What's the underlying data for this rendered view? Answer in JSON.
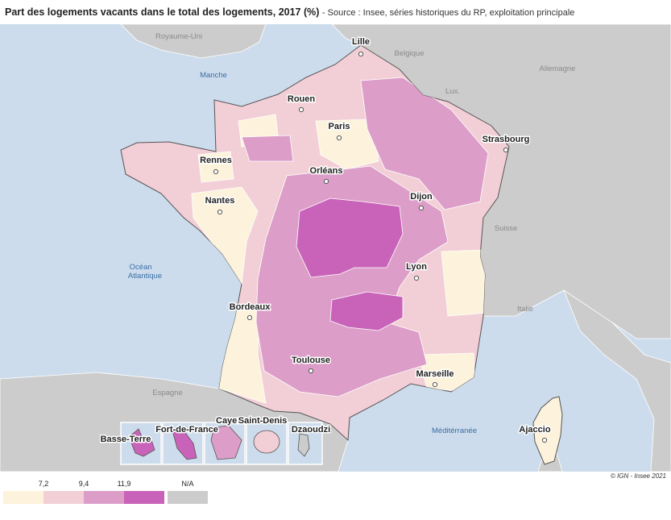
{
  "header": {
    "title": "Part des logements vacants dans le total des logements, 2017 (%)",
    "source": "- Source : Insee, séries historiques du RP, exploitation principale"
  },
  "map": {
    "countries": [
      "Royaume-Uni",
      "Belgique",
      "Allemagne",
      "Lux.",
      "Suisse",
      "Italie",
      "Espagne"
    ],
    "seas": [
      "Manche",
      "Océan Atlantique",
      "Méditérranée"
    ],
    "cities": [
      "Lille",
      "Rouen",
      "Paris",
      "Strasbourg",
      "Rennes",
      "Orléans",
      "Dijon",
      "Nantes",
      "Lyon",
      "Bordeaux",
      "Toulouse",
      "Marseille",
      "Ajaccio"
    ],
    "overseas": [
      "Basse-Terre",
      "Fort-de-France",
      "Cayenne",
      "Saint-Denis",
      "Dzaoudzi"
    ],
    "colors": {
      "sea": "#cddcec",
      "land": "#cccccc",
      "class1": "#fdf3dc",
      "class2": "#f2cfd6",
      "class3": "#dc9ec8",
      "class4": "#c963b9",
      "na": "#cccccc"
    }
  },
  "legend": {
    "breaks": [
      "7,2",
      "9,4",
      "11,9"
    ],
    "na_label": "N/A"
  },
  "credit": "© IGN - Insee 2021"
}
